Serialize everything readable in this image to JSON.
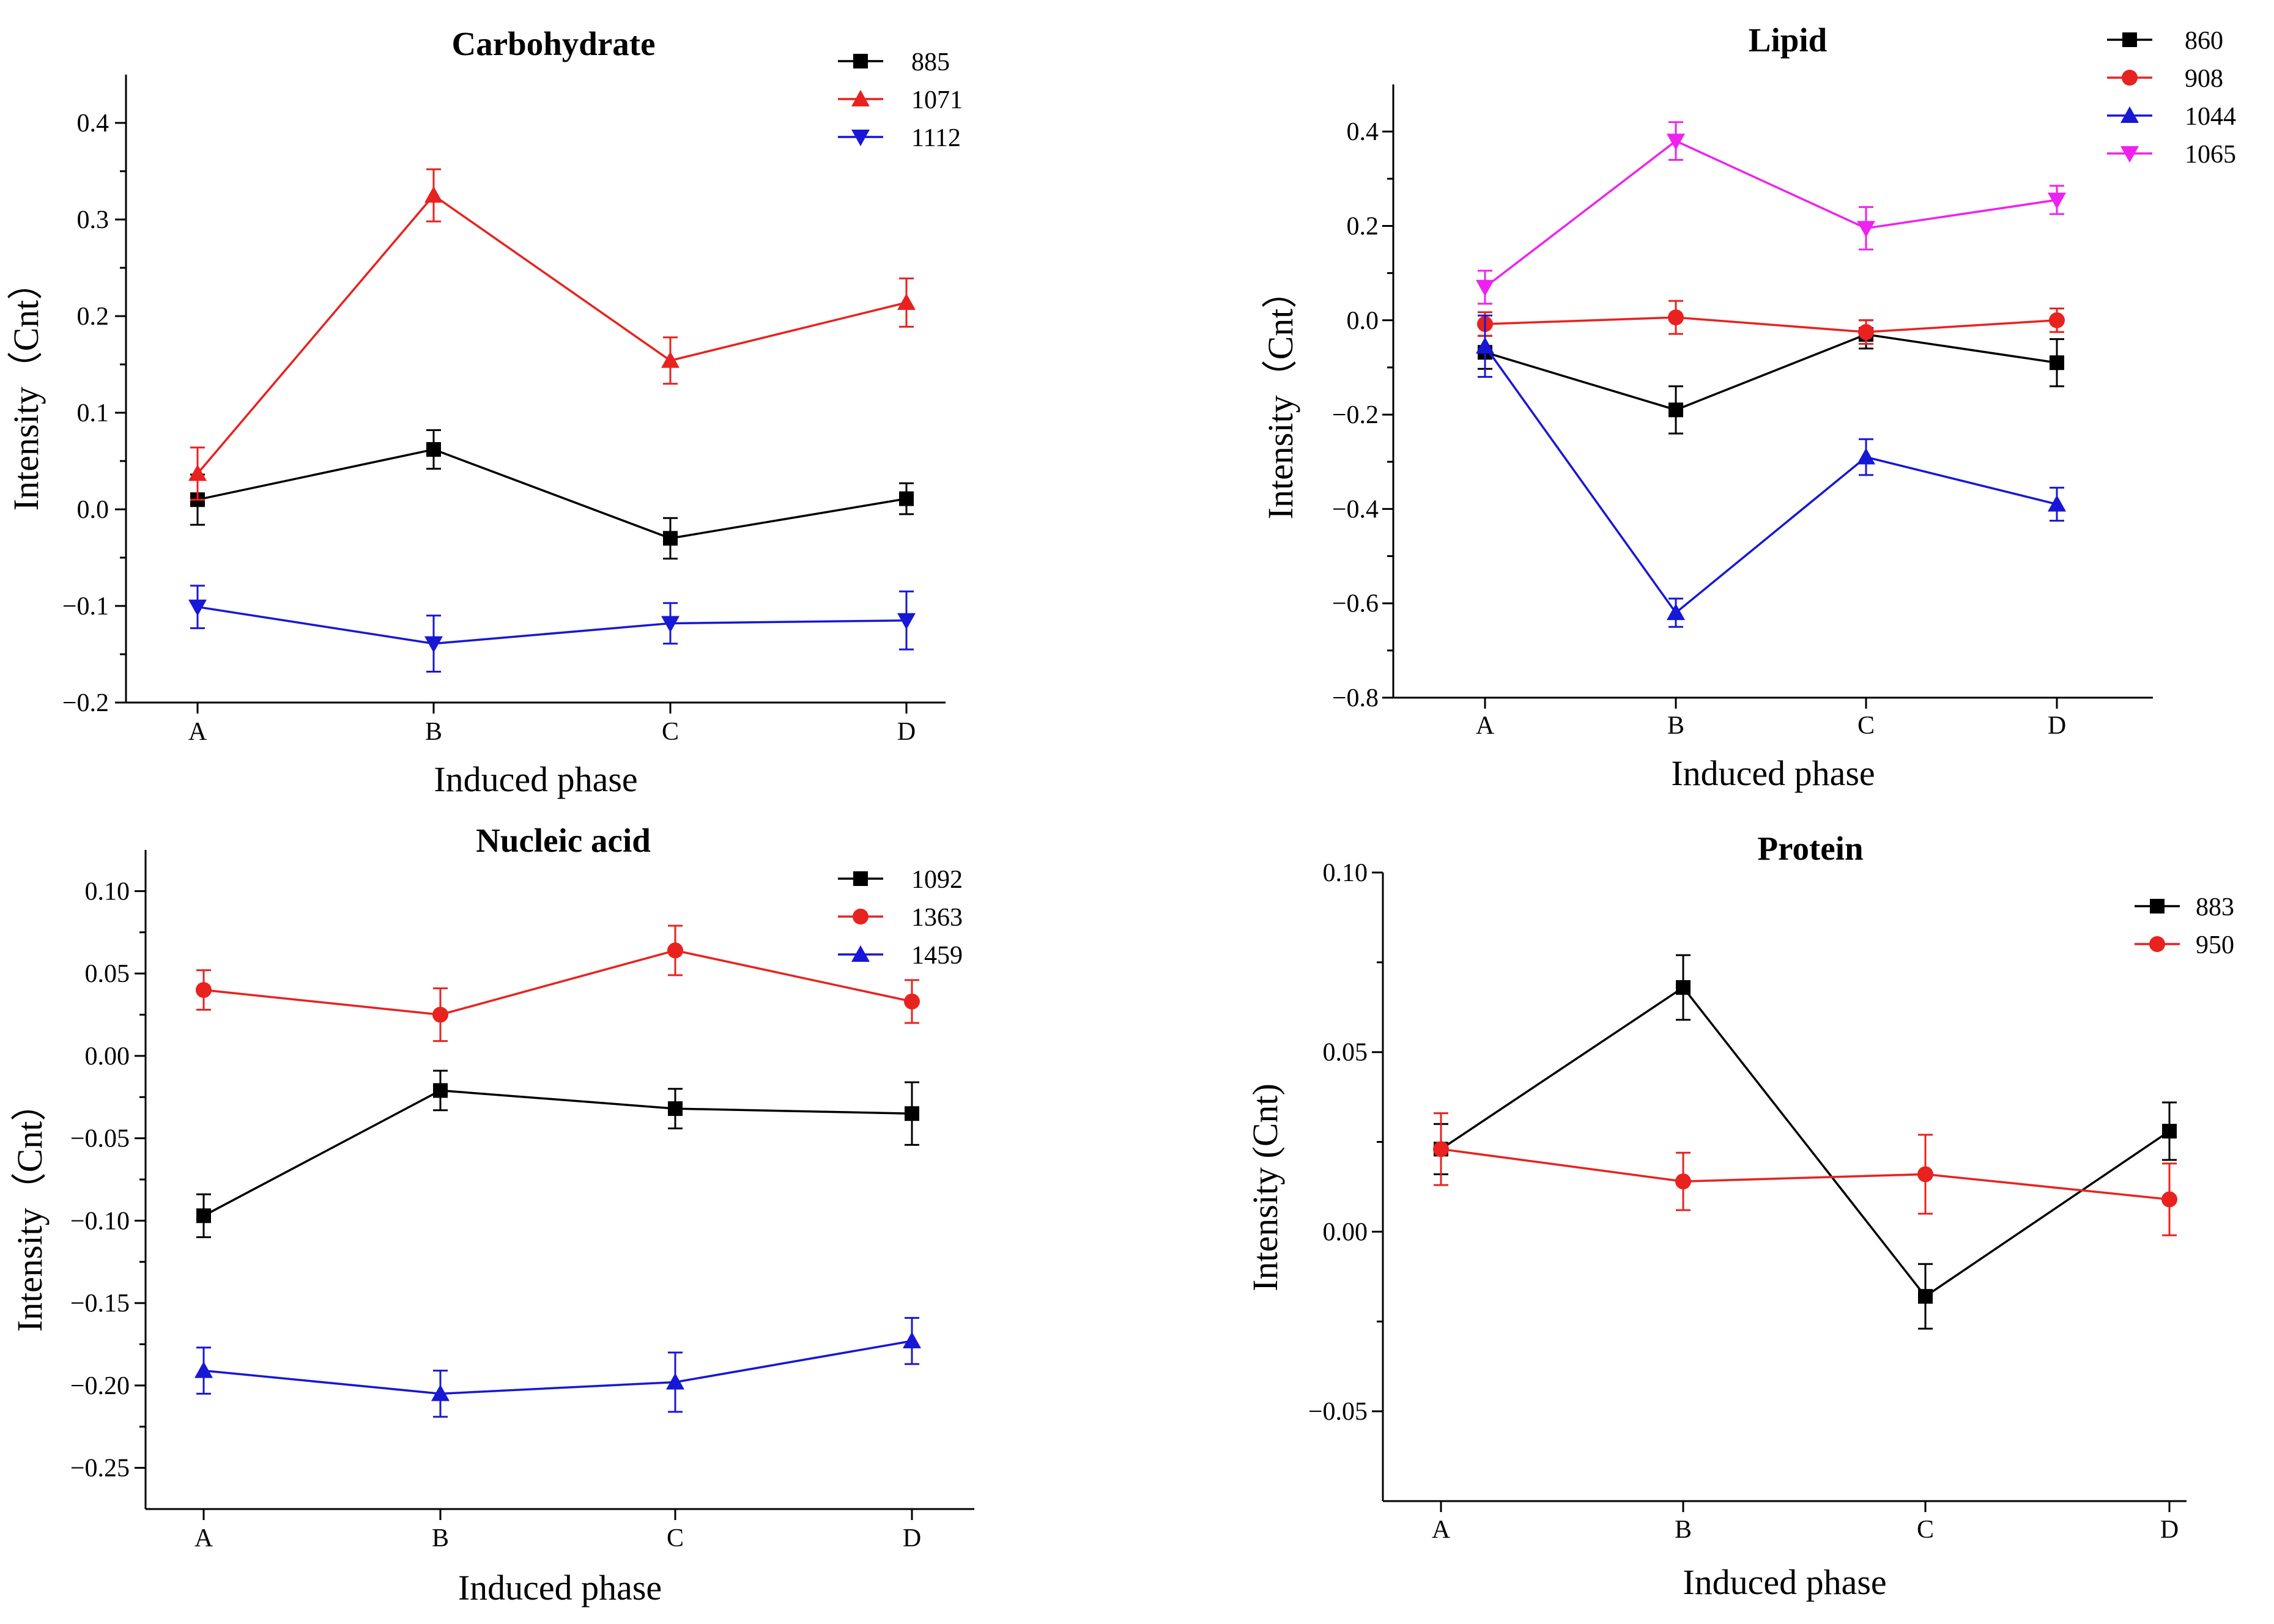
{
  "chart_data": [
    {
      "type": "line",
      "title": "Carbohydrate",
      "xlabel": "Induced phase",
      "ylabel": "Intensity（Cnt）",
      "categories": [
        "A",
        "B",
        "C",
        "D"
      ],
      "ylim": [
        -0.2,
        0.45
      ],
      "yticks": [
        -0.2,
        -0.1,
        0.0,
        0.1,
        0.2,
        0.3,
        0.4
      ],
      "ytick_labels": [
        "−0.2",
        "−0.1",
        "0.0",
        "0.1",
        "0.2",
        "0.3",
        "0.4"
      ],
      "legend_position": "top-right",
      "series": [
        {
          "name": "885",
          "color": "#000000",
          "marker": "square",
          "values": [
            0.01,
            0.062,
            -0.03,
            0.011
          ],
          "errors": [
            0.026,
            0.02,
            0.021,
            0.016
          ]
        },
        {
          "name": "1071",
          "color": "#e8221f",
          "marker": "triangle-up",
          "values": [
            0.037,
            0.325,
            0.154,
            0.214
          ],
          "errors": [
            0.027,
            0.027,
            0.024,
            0.025
          ]
        },
        {
          "name": "1112",
          "color": "#1717d6",
          "marker": "triangle-down",
          "values": [
            -0.101,
            -0.139,
            -0.118,
            -0.115
          ],
          "errors": [
            0.022,
            0.029,
            0.021,
            0.03
          ]
        }
      ]
    },
    {
      "type": "line",
      "title": "Lipid",
      "xlabel": "Induced phase",
      "ylabel": "Intensity（Cnt）",
      "categories": [
        "A",
        "B",
        "C",
        "D"
      ],
      "ylim": [
        -0.8,
        0.5
      ],
      "yticks": [
        -0.8,
        -0.6,
        -0.4,
        -0.2,
        0.0,
        0.2,
        0.4
      ],
      "ytick_labels": [
        "−0.8",
        "−0.6",
        "−0.4",
        "−0.2",
        "0.0",
        "0.2",
        "0.4"
      ],
      "legend_position": "top-right",
      "series": [
        {
          "name": "860",
          "color": "#000000",
          "marker": "square",
          "values": [
            -0.068,
            -0.19,
            -0.03,
            -0.09
          ],
          "errors": [
            0.035,
            0.05,
            0.03,
            0.05
          ]
        },
        {
          "name": "908",
          "color": "#e8221f",
          "marker": "circle",
          "values": [
            -0.008,
            0.006,
            -0.025,
            0.0
          ],
          "errors": [
            0.025,
            0.035,
            0.025,
            0.025
          ]
        },
        {
          "name": "1044",
          "color": "#1717d6",
          "marker": "triangle-up",
          "values": [
            -0.055,
            -0.62,
            -0.29,
            -0.39
          ],
          "errors": [
            0.065,
            0.03,
            0.038,
            0.035
          ]
        },
        {
          "name": "1065",
          "color": "#ee22ee",
          "marker": "triangle-down",
          "values": [
            0.07,
            0.38,
            0.195,
            0.255
          ],
          "errors": [
            0.035,
            0.04,
            0.045,
            0.03
          ]
        }
      ]
    },
    {
      "type": "line",
      "title": "Nucleic acid",
      "xlabel": "Induced phase",
      "ylabel": "Intensity（Cnt）",
      "categories": [
        "A",
        "B",
        "C",
        "D"
      ],
      "ylim": [
        -0.275,
        0.125
      ],
      "yticks": [
        -0.25,
        -0.2,
        -0.15,
        -0.1,
        -0.05,
        0.0,
        0.05,
        0.1
      ],
      "ytick_labels": [
        "−0.25",
        "−0.20",
        "−0.15",
        "−0.10",
        "−0.05",
        "0.00",
        "0.05",
        "0.10"
      ],
      "legend_position": "top-right",
      "series": [
        {
          "name": "1092",
          "color": "#000000",
          "marker": "square",
          "values": [
            -0.097,
            -0.021,
            -0.032,
            -0.035
          ],
          "errors": [
            0.013,
            0.012,
            0.012,
            0.019
          ]
        },
        {
          "name": "1363",
          "color": "#e8221f",
          "marker": "circle",
          "values": [
            0.04,
            0.025,
            0.064,
            0.033
          ],
          "errors": [
            0.012,
            0.016,
            0.015,
            0.013
          ]
        },
        {
          "name": "1459",
          "color": "#1717d6",
          "marker": "triangle-up",
          "values": [
            -0.191,
            -0.205,
            -0.198,
            -0.173
          ],
          "errors": [
            0.014,
            0.014,
            0.018,
            0.014
          ]
        }
      ]
    },
    {
      "type": "line",
      "title": "Protein",
      "xlabel": "Induced phase",
      "ylabel": "Intensity (Cnt)",
      "categories": [
        "A",
        "B",
        "C",
        "D"
      ],
      "ylim": [
        -0.075,
        0.1
      ],
      "yticks": [
        -0.05,
        0.0,
        0.05,
        0.1
      ],
      "ytick_labels": [
        "−0.05",
        "0.00",
        "0.05",
        "0.10"
      ],
      "legend_position": "top-right",
      "series": [
        {
          "name": "883",
          "color": "#000000",
          "marker": "square",
          "values": [
            0.023,
            0.068,
            -0.018,
            0.028
          ],
          "errors": [
            0.007,
            0.009,
            0.009,
            0.008
          ]
        },
        {
          "name": "950",
          "color": "#e8221f",
          "marker": "circle",
          "values": [
            0.023,
            0.014,
            0.016,
            0.009
          ],
          "errors": [
            0.01,
            0.008,
            0.011,
            0.01
          ]
        }
      ]
    }
  ]
}
